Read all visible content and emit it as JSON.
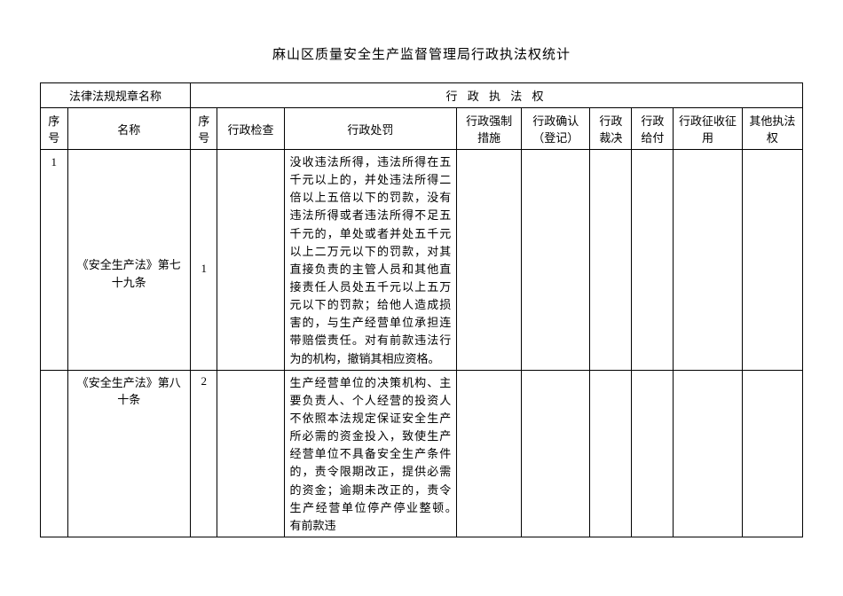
{
  "title": "麻山区质量安全生产监督管理局行政执法权统计",
  "headers": {
    "law_section": "法律法规规章名称",
    "power_section": "行 政 执 法 权",
    "seq1": "序号",
    "name": "名称",
    "seq2": "序号",
    "check": "行政检查",
    "punish": "行政处罚",
    "force": "行政强制措施",
    "confirm": "行政确认（登记）",
    "judge": "行政裁决",
    "pay": "行政给付",
    "collect": "行政征收征用",
    "other": "其他执法权"
  },
  "rows": [
    {
      "outer_seq": "1",
      "name": "《安全生产法》第七十九条",
      "inner_seq": "1",
      "check": "",
      "punish": "没收违法所得，违法所得在五千元以上的，并处违法所得二倍以上五倍以下的罚款，没有违法所得或者违法所得不足五千元的，单处或者并处五千元以上二万元以下的罚款，对其直接负责的主管人员和其他直接责任人员处五千元以上五万元以下的罚款；给他人造成损害的，与生产经营单位承担连带赔偿责任。对有前款违法行为的机构，撤销其相应资格。",
      "force": "",
      "confirm": "",
      "judge": "",
      "pay": "",
      "collect": "",
      "other": ""
    },
    {
      "outer_seq": "",
      "name": "《安全生产法》第八十条",
      "inner_seq": "2",
      "check": "",
      "punish": "生产经营单位的决策机构、主要负责人、个人经营的投资人不依照本法规定保证安全生产所必需的资金投入，致使生产经营单位不具备安全生产条件的，责令限期改正，提供必需的资金；逾期未改正的，责令生产经营单位停产停业整顿。　有前款违",
      "force": "",
      "confirm": "",
      "judge": "",
      "pay": "",
      "collect": "",
      "other": ""
    }
  ]
}
